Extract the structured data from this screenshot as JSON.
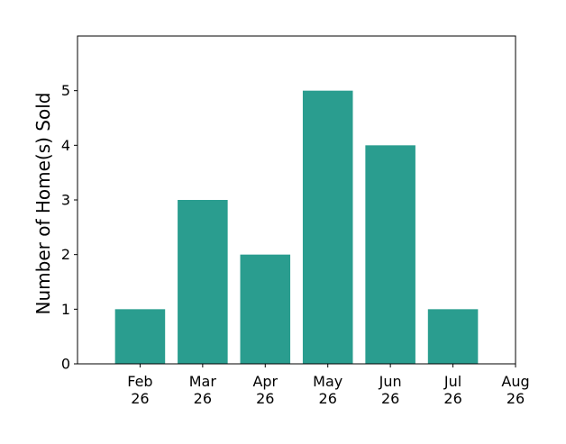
{
  "chart_data": {
    "type": "bar",
    "categories": [
      "Feb 26",
      "Mar 26",
      "Apr 26",
      "May 26",
      "Jun 26",
      "Jul 26"
    ],
    "values": [
      1,
      3,
      2,
      5,
      4,
      1
    ],
    "x_ticks": [
      {
        "line1": "Feb",
        "line2": "26"
      },
      {
        "line1": "Mar",
        "line2": "26"
      },
      {
        "line1": "Apr",
        "line2": "26"
      },
      {
        "line1": "May",
        "line2": "26"
      },
      {
        "line1": "Jun",
        "line2": "26"
      },
      {
        "line1": "Jul",
        "line2": "26"
      },
      {
        "line1": "Aug",
        "line2": "26"
      }
    ],
    "y_ticks": [
      0,
      1,
      2,
      3,
      4,
      5
    ],
    "ylim": [
      0,
      6
    ],
    "title": "",
    "xlabel": "",
    "ylabel": "Number of Home(s) Sold",
    "bar_color": "#2a9d8f",
    "grid": false,
    "legend": "none"
  }
}
